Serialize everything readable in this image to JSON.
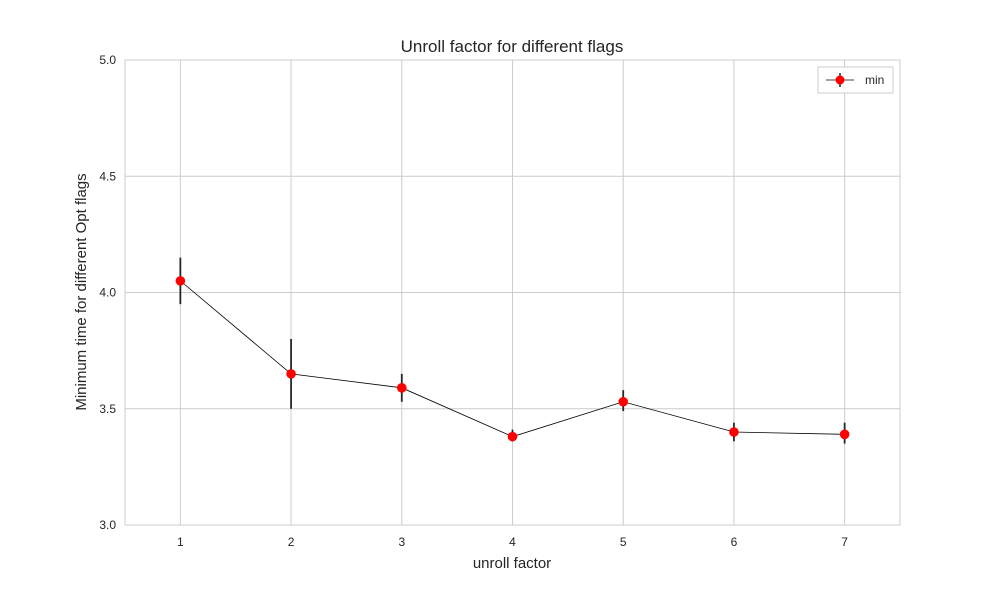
{
  "chart_data": {
    "type": "line",
    "title": "Unroll factor for different flags",
    "xlabel": "unroll factor",
    "ylabel": "Minimum time for different Opt flags",
    "xlim": [
      0.5,
      7.5
    ],
    "ylim": [
      3.0,
      5.0
    ],
    "xticks": [
      "1",
      "2",
      "3",
      "4",
      "5",
      "6",
      "7"
    ],
    "yticks": [
      "3.0",
      "3.5",
      "4.0",
      "4.5",
      "5.0"
    ],
    "grid": true,
    "legend_position": "top-right",
    "series": [
      {
        "name": "min",
        "color": "#ff0000",
        "line_color": "#000000",
        "x": [
          1,
          2,
          3,
          4,
          5,
          6,
          7
        ],
        "y": [
          4.05,
          3.65,
          3.59,
          3.38,
          3.53,
          3.4,
          3.39
        ],
        "yerr_low": [
          3.95,
          3.5,
          3.53,
          3.36,
          3.49,
          3.36,
          3.35
        ],
        "yerr_high": [
          4.15,
          3.8,
          3.65,
          3.41,
          3.58,
          3.44,
          3.44
        ]
      }
    ]
  }
}
